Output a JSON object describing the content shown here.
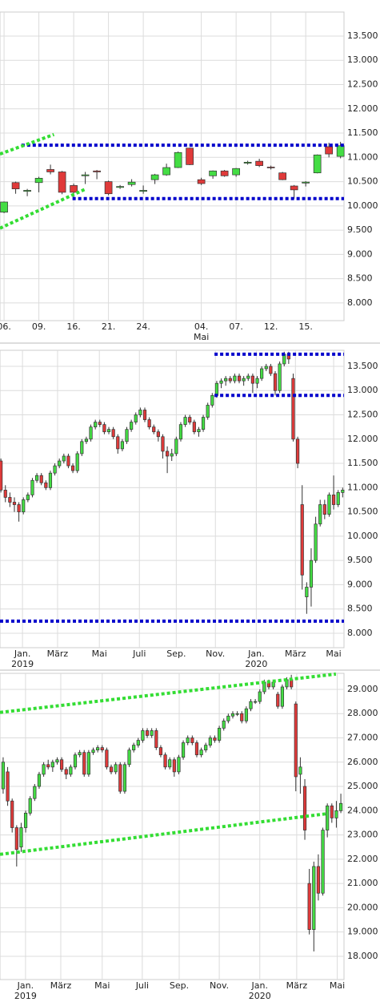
{
  "chart_data": [
    {
      "type": "candlestick",
      "up_color": "#44dd44",
      "down_color": "#e03a3a",
      "grid": true,
      "ylim": [
        7635,
        13995
      ],
      "xlim": [
        -0.35,
        29.3
      ],
      "yticks": [
        {
          "value": 8000,
          "label": "8.000"
        },
        {
          "value": 8500,
          "label": "8.500"
        },
        {
          "value": 9000,
          "label": "9.000"
        },
        {
          "value": 9500,
          "label": "9.500"
        },
        {
          "value": 10000,
          "label": "10.000"
        },
        {
          "value": 10500,
          "label": "10.500"
        },
        {
          "value": 11000,
          "label": "11.000"
        },
        {
          "value": 11500,
          "label": "11.500"
        },
        {
          "value": 12000,
          "label": "12.000"
        },
        {
          "value": 12500,
          "label": "12.500"
        },
        {
          "value": 13000,
          "label": "13.000"
        },
        {
          "value": 13500,
          "label": "13.500"
        }
      ],
      "xticks": [
        {
          "value": 0,
          "label": "06."
        },
        {
          "value": 3,
          "label": "09."
        },
        {
          "value": 6,
          "label": "16."
        },
        {
          "value": 9,
          "label": "21."
        },
        {
          "value": 12,
          "label": "24."
        },
        {
          "value": 17,
          "label": "04."
        },
        {
          "value": 20,
          "label": "07."
        },
        {
          "value": 23,
          "label": "12."
        },
        {
          "value": 26,
          "label": "15."
        }
      ],
      "xtick_sublabels": [
        {
          "value": 17,
          "label": "Mai"
        }
      ],
      "open": [
        9870,
        10480,
        10300,
        10480,
        10750,
        10700,
        10420,
        10620,
        10720,
        10500,
        10380,
        10440,
        10300,
        10540,
        10640,
        10790,
        11190,
        10540,
        10620,
        10720,
        10640,
        10880,
        10920,
        10800,
        10680,
        10410,
        10470,
        10680,
        11220,
        11020
      ],
      "high": [
        10090,
        10500,
        10350,
        10600,
        10850,
        10720,
        10460,
        10700,
        10740,
        10520,
        10430,
        10550,
        10420,
        10660,
        10870,
        11120,
        11200,
        10580,
        10730,
        10740,
        10780,
        10930,
        10970,
        10830,
        10700,
        10430,
        10510,
        11060,
        11300,
        11320
      ],
      "low": [
        9850,
        10250,
        10200,
        10280,
        10650,
        10240,
        10150,
        10450,
        10550,
        10220,
        10350,
        10400,
        10250,
        10450,
        10620,
        10780,
        10840,
        10430,
        10560,
        10600,
        10600,
        10850,
        10800,
        10750,
        10530,
        10150,
        10400,
        10670,
        11000,
        10980
      ],
      "close": [
        10080,
        10350,
        10320,
        10570,
        10700,
        10280,
        10280,
        10640,
        10700,
        10250,
        10400,
        10490,
        10320,
        10640,
        10790,
        11100,
        10850,
        10460,
        10720,
        10620,
        10770,
        10900,
        10830,
        10790,
        10540,
        10330,
        10490,
        11050,
        11070,
        11240
      ],
      "lines": [
        {
          "color": "#0000cc",
          "style": "dotted",
          "points": [
            [
              1.5,
              11250
            ],
            [
              29.3,
              11250
            ]
          ]
        },
        {
          "color": "#0000cc",
          "style": "dotted",
          "points": [
            [
              5.9,
              10150
            ],
            [
              29.3,
              10150
            ]
          ]
        },
        {
          "color": "#33dd33",
          "style": "dotted",
          "points": [
            [
              -0.35,
              11070
            ],
            [
              4.3,
              11470
            ]
          ]
        },
        {
          "color": "#33dd33",
          "style": "dotted",
          "points": [
            [
              -0.35,
              9540
            ],
            [
              7.05,
              10350
            ]
          ]
        }
      ]
    },
    {
      "type": "candlestick",
      "up_color": "#44dd44",
      "down_color": "#e03a3a",
      "grid": true,
      "ylim": [
        7702,
        13830
      ],
      "xlim": [
        -0.2,
        76.3
      ],
      "yticks": [
        {
          "value": 8000,
          "label": "8.000"
        },
        {
          "value": 8500,
          "label": "8.500"
        },
        {
          "value": 9000,
          "label": "9.000"
        },
        {
          "value": 9500,
          "label": "9.500"
        },
        {
          "value": 10000,
          "label": "10.000"
        },
        {
          "value": 10500,
          "label": "10.500"
        },
        {
          "value": 11000,
          "label": "11.000"
        },
        {
          "value": 11500,
          "label": "11.500"
        },
        {
          "value": 12000,
          "label": "12.000"
        },
        {
          "value": 12500,
          "label": "12.500"
        },
        {
          "value": 13000,
          "label": "13.000"
        },
        {
          "value": 13500,
          "label": "13.500"
        }
      ],
      "xticks": [
        {
          "value": 4.8,
          "label": "Jan."
        },
        {
          "value": 12.6,
          "label": "März"
        },
        {
          "value": 21.9,
          "label": "Mai"
        },
        {
          "value": 30.8,
          "label": "Juli"
        },
        {
          "value": 39.0,
          "label": "Sep."
        },
        {
          "value": 47.7,
          "label": "Nov."
        },
        {
          "value": 56.8,
          "label": "Jan."
        },
        {
          "value": 65.5,
          "label": "März"
        },
        {
          "value": 74.0,
          "label": "Mai"
        }
      ],
      "xtick_sublabels": [
        {
          "value": 4.8,
          "label": "2019"
        },
        {
          "value": 56.8,
          "label": "2020"
        }
      ],
      "open": [
        11550,
        10950,
        10800,
        10700,
        10650,
        10500,
        10750,
        10850,
        11150,
        11250,
        11100,
        11000,
        11300,
        11450,
        11550,
        11650,
        11450,
        11350,
        11700,
        11950,
        12000,
        12250,
        12350,
        12300,
        12150,
        12200,
        12050,
        11800,
        11950,
        12200,
        12350,
        12500,
        12600,
        12400,
        12250,
        12150,
        12050,
        11750,
        11650,
        11700,
        12000,
        12300,
        12450,
        12350,
        12150,
        12200,
        12450,
        12700,
        12900,
        13150,
        13200,
        13250,
        13200,
        13300,
        13200,
        13250,
        13300,
        13150,
        13250,
        13450,
        13500,
        13350,
        13000,
        13550,
        13750,
        13250,
        12000,
        10650,
        8750,
        8950,
        9500,
        10250,
        10650,
        10450,
        10850,
        10650,
        10900
      ],
      "high": [
        11600,
        11050,
        10900,
        10800,
        10700,
        10800,
        10900,
        11200,
        11300,
        11300,
        11150,
        11350,
        11500,
        11600,
        11700,
        11700,
        11500,
        11750,
        12000,
        12050,
        12300,
        12400,
        12400,
        12350,
        12250,
        12250,
        12100,
        12000,
        12250,
        12400,
        12550,
        12650,
        12650,
        12450,
        12300,
        12200,
        12100,
        11850,
        11800,
        12050,
        12350,
        12500,
        12500,
        12400,
        12250,
        12500,
        12750,
        12950,
        13200,
        13250,
        13300,
        13300,
        13350,
        13350,
        13300,
        13350,
        13350,
        13300,
        13500,
        13550,
        13550,
        13400,
        13600,
        13800,
        13800,
        13350,
        12050,
        11050,
        9050,
        9750,
        10400,
        10750,
        10750,
        10900,
        11250,
        10950,
        11000
      ],
      "low": [
        10900,
        10700,
        10600,
        10500,
        10300,
        10450,
        10700,
        10800,
        11100,
        11050,
        10950,
        10950,
        11250,
        11400,
        11500,
        11400,
        11300,
        11300,
        11650,
        11900,
        11950,
        12200,
        12250,
        12100,
        12100,
        12000,
        11700,
        11750,
        11900,
        12150,
        12300,
        12450,
        12350,
        12200,
        12100,
        11950,
        11600,
        11300,
        11550,
        11650,
        11950,
        12250,
        12300,
        12100,
        12050,
        12150,
        12400,
        12650,
        12850,
        13050,
        13100,
        13150,
        13150,
        13150,
        13100,
        13200,
        12950,
        13050,
        13200,
        13400,
        13300,
        12900,
        12950,
        13500,
        13550,
        11950,
        11400,
        8900,
        8400,
        8550,
        9450,
        10200,
        10350,
        10400,
        10550,
        10600,
        10800
      ],
      "close": [
        10950,
        10800,
        10700,
        10650,
        10500,
        10750,
        10850,
        11150,
        11250,
        11100,
        11000,
        11300,
        11450,
        11550,
        11650,
        11450,
        11350,
        11700,
        11950,
        12000,
        12250,
        12350,
        12300,
        12150,
        12200,
        12050,
        11800,
        11950,
        12200,
        12350,
        12500,
        12600,
        12400,
        12250,
        12150,
        12050,
        11750,
        11650,
        11700,
        12000,
        12300,
        12450,
        12350,
        12150,
        12200,
        12450,
        12700,
        12900,
        13150,
        13200,
        13250,
        13200,
        13300,
        13200,
        13250,
        13300,
        13150,
        13250,
        13450,
        13500,
        13350,
        13000,
        13550,
        13750,
        13650,
        12000,
        11500,
        9200,
        8950,
        9500,
        10250,
        10650,
        10450,
        10850,
        10650,
        10900,
        10950
      ],
      "lines": [
        {
          "color": "#0000cc",
          "style": "dotted",
          "points": [
            [
              47.5,
              13750
            ],
            [
              76.3,
              13750
            ]
          ]
        },
        {
          "color": "#0000cc",
          "style": "dotted",
          "points": [
            [
              47.5,
              12900
            ],
            [
              76.3,
              12900
            ]
          ]
        },
        {
          "color": "#0000cc",
          "style": "dotted",
          "points": [
            [
              -0.2,
              8250
            ],
            [
              76.3,
              8250
            ]
          ]
        }
      ]
    },
    {
      "type": "candlestick",
      "up_color": "#44dd44",
      "down_color": "#e03a3a",
      "grid": true,
      "ylim": [
        17040,
        29660
      ],
      "xlim": [
        -0.7,
        75.7
      ],
      "yticks": [
        {
          "value": 18000,
          "label": "18.000"
        },
        {
          "value": 19000,
          "label": "19.000"
        },
        {
          "value": 20000,
          "label": "20.000"
        },
        {
          "value": 21000,
          "label": "21.000"
        },
        {
          "value": 22000,
          "label": "22.000"
        },
        {
          "value": 23000,
          "label": "23.000"
        },
        {
          "value": 24000,
          "label": "24.000"
        },
        {
          "value": 25000,
          "label": "25.000"
        },
        {
          "value": 26000,
          "label": "26.000"
        },
        {
          "value": 27000,
          "label": "27.000"
        },
        {
          "value": 28000,
          "label": "28.000"
        },
        {
          "value": 29000,
          "label": "29.000"
        }
      ],
      "xticks": [
        {
          "value": 4.97,
          "label": "Jan."
        },
        {
          "value": 12.8,
          "label": "März"
        },
        {
          "value": 22.0,
          "label": "Mai"
        },
        {
          "value": 30.9,
          "label": "Juli"
        },
        {
          "value": 39.1,
          "label": "Sep."
        },
        {
          "value": 48.0,
          "label": "Nov."
        },
        {
          "value": 57.0,
          "label": "Jan."
        },
        {
          "value": 65.2,
          "label": "März"
        },
        {
          "value": 74.2,
          "label": "Mai"
        }
      ],
      "xtick_sublabels": [
        {
          "value": 4.97,
          "label": "2019"
        },
        {
          "value": 57.0,
          "label": "2020"
        }
      ],
      "open": [
        24900,
        25600,
        24400,
        23300,
        22500,
        23300,
        23900,
        24500,
        25000,
        25500,
        25900,
        25800,
        26000,
        26100,
        25700,
        25500,
        25800,
        26300,
        26400,
        25500,
        26400,
        26500,
        26600,
        26500,
        25800,
        25600,
        25900,
        24800,
        25900,
        26500,
        26700,
        26900,
        27300,
        27100,
        27300,
        26600,
        26300,
        25800,
        26100,
        25600,
        26200,
        26800,
        27000,
        26800,
        26300,
        26500,
        26700,
        27000,
        26900,
        27400,
        27700,
        27900,
        28000,
        28000,
        27700,
        28200,
        28500,
        28500,
        28900,
        29300,
        29100,
        28800,
        28300,
        29100,
        29400,
        28400,
        25500,
        25000,
        21000,
        19100,
        21700,
        20600,
        23200,
        24200,
        23700,
        24000
      ],
      "high": [
        26200,
        25800,
        24500,
        23400,
        23500,
        24000,
        24600,
        25100,
        25600,
        26000,
        26100,
        26100,
        26200,
        26200,
        25800,
        25900,
        26400,
        26500,
        26500,
        26500,
        26600,
        26700,
        26700,
        26600,
        25900,
        26000,
        26000,
        26000,
        26600,
        26800,
        27000,
        27400,
        27400,
        27400,
        27400,
        26700,
        26400,
        26200,
        26200,
        26300,
        26900,
        27100,
        27100,
        26900,
        26600,
        26800,
        27100,
        27100,
        27500,
        27800,
        28000,
        28100,
        28100,
        28100,
        28300,
        28600,
        28600,
        29000,
        29400,
        29400,
        29400,
        28900,
        29200,
        29500,
        29600,
        28500,
        26200,
        25300,
        21600,
        21900,
        22200,
        23300,
        24300,
        24300,
        24400,
        24700
      ],
      "low": [
        24700,
        24200,
        23100,
        21700,
        22300,
        23100,
        23800,
        24400,
        24900,
        25400,
        25700,
        25600,
        25900,
        25600,
        25300,
        25400,
        25700,
        26200,
        25400,
        25400,
        26300,
        26400,
        26400,
        25700,
        25500,
        25500,
        24700,
        24700,
        25800,
        26400,
        26600,
        26800,
        27000,
        27000,
        26500,
        26200,
        25700,
        25700,
        25400,
        25500,
        26100,
        26700,
        26700,
        26200,
        26200,
        26400,
        26600,
        26800,
        26800,
        27300,
        27600,
        27800,
        27900,
        27600,
        27600,
        28100,
        28400,
        28400,
        28800,
        29000,
        29000,
        28200,
        28200,
        29000,
        29000,
        24800,
        24700,
        22800,
        18900,
        18200,
        20300,
        20500,
        22900,
        23500,
        23300,
        23900
      ],
      "close": [
        26000,
        24400,
        23300,
        22400,
        23300,
        23900,
        24500,
        25000,
        25500,
        25900,
        25800,
        26000,
        26100,
        25700,
        25500,
        25800,
        26300,
        26400,
        25500,
        26400,
        26500,
        26600,
        26500,
        25800,
        25600,
        25900,
        24800,
        25900,
        26500,
        26700,
        26900,
        27300,
        27100,
        27300,
        26600,
        26300,
        25800,
        26100,
        25600,
        26200,
        26800,
        27000,
        26800,
        26300,
        26500,
        26700,
        27000,
        26900,
        27400,
        27700,
        27900,
        28000,
        28000,
        27700,
        28200,
        28500,
        28500,
        28900,
        29300,
        29100,
        29300,
        28300,
        29100,
        29400,
        29100,
        25400,
        25800,
        23200,
        19100,
        21700,
        20600,
        23200,
        24200,
        23700,
        24000,
        24300
      ],
      "lines": [
        {
          "color": "#33dd33",
          "style": "dotted",
          "points": [
            [
              -0.7,
              28050
            ],
            [
              73.9,
              29630
            ]
          ]
        },
        {
          "color": "#33dd33",
          "style": "dotted",
          "points": [
            [
              -0.7,
              22200
            ],
            [
              72.1,
              23880
            ]
          ]
        }
      ]
    }
  ]
}
